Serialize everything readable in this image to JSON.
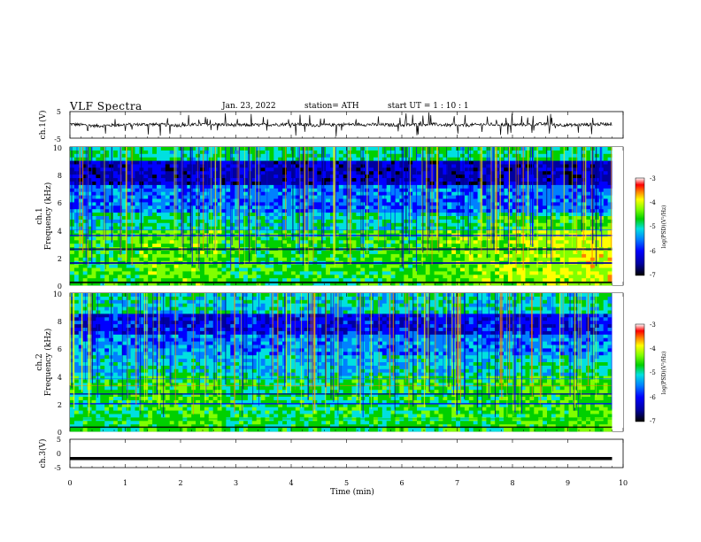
{
  "header": {
    "title": "VLF  Spectra",
    "date": "Jan. 23, 2022",
    "station": "station= ATH",
    "start_ut": "start  UT  =   1  : 10 : 1"
  },
  "chart_data": [
    {
      "type": "line",
      "panel": "ch1-waveform",
      "ylabel": "ch.1(V)",
      "xlim": [
        0,
        10
      ],
      "ylim": [
        -5,
        5
      ],
      "yticks": [
        "5",
        "-5"
      ],
      "data_end_min": 9.8,
      "baseline_v": 0,
      "x": [
        0,
        0.5,
        1,
        1.5,
        2,
        2.5,
        3,
        3.5,
        4,
        4.5,
        5,
        5.5,
        6,
        6.5,
        7,
        7.5,
        8,
        8.5,
        9,
        9.5,
        9.8
      ],
      "y": [
        0.3,
        -0.4,
        0.1,
        0.2,
        -0.2,
        0.3,
        -0.1,
        0.0,
        0.3,
        -0.2,
        0.2,
        0.1,
        -0.1,
        0.3,
        -0.3,
        0.2,
        0.0,
        0.3,
        -0.1,
        0.2,
        0.4
      ]
    },
    {
      "type": "heatmap",
      "panel": "ch1-spectrogram",
      "ylabel": "ch.1\nFrequency  (kHz)",
      "xlim": [
        0,
        10
      ],
      "ylim": [
        0,
        10
      ],
      "yticks": [
        "0",
        "2",
        "4",
        "6",
        "8",
        "10"
      ],
      "data_end_min": 9.8,
      "colorbar": {
        "label": "log(PSD)(V²/Hz)",
        "range": [
          -7,
          -3
        ],
        "ticks": [
          "-3",
          "-4",
          "-5",
          "-6",
          "-7"
        ]
      }
    },
    {
      "type": "heatmap",
      "panel": "ch2-spectrogram",
      "ylabel": "ch.2\nFrequency  (kHz)",
      "xlim": [
        0,
        10
      ],
      "ylim": [
        0,
        10
      ],
      "yticks": [
        "0",
        "2",
        "4",
        "6",
        "8",
        "10"
      ],
      "data_end_min": 9.8,
      "colorbar": {
        "label": "log(PSD)(V²/Hz)",
        "range": [
          -7,
          -3
        ],
        "ticks": [
          "-3",
          "-4",
          "-5",
          "-6",
          "-7"
        ]
      }
    },
    {
      "type": "line",
      "panel": "ch3-waveform",
      "ylabel": "ch.3(V)",
      "xlim": [
        0,
        10
      ],
      "ylim": [
        -5,
        5
      ],
      "yticks": [
        "5",
        "0",
        "-5"
      ],
      "data_end_min": 9.8,
      "x": [
        0,
        9.8
      ],
      "y": [
        -1.8,
        -1.8
      ]
    }
  ],
  "x_axis": {
    "label": "Time  (min)",
    "ticks": [
      "0",
      "1",
      "2",
      "3",
      "4",
      "5",
      "6",
      "7",
      "8",
      "9",
      "10"
    ]
  },
  "colors": {
    "colormap": [
      "#000000",
      "#0000a0",
      "#0000ff",
      "#0080ff",
      "#00e0e0",
      "#00d000",
      "#80ff00",
      "#ffff00",
      "#ff8000",
      "#ff0000",
      "#ffffff"
    ]
  }
}
